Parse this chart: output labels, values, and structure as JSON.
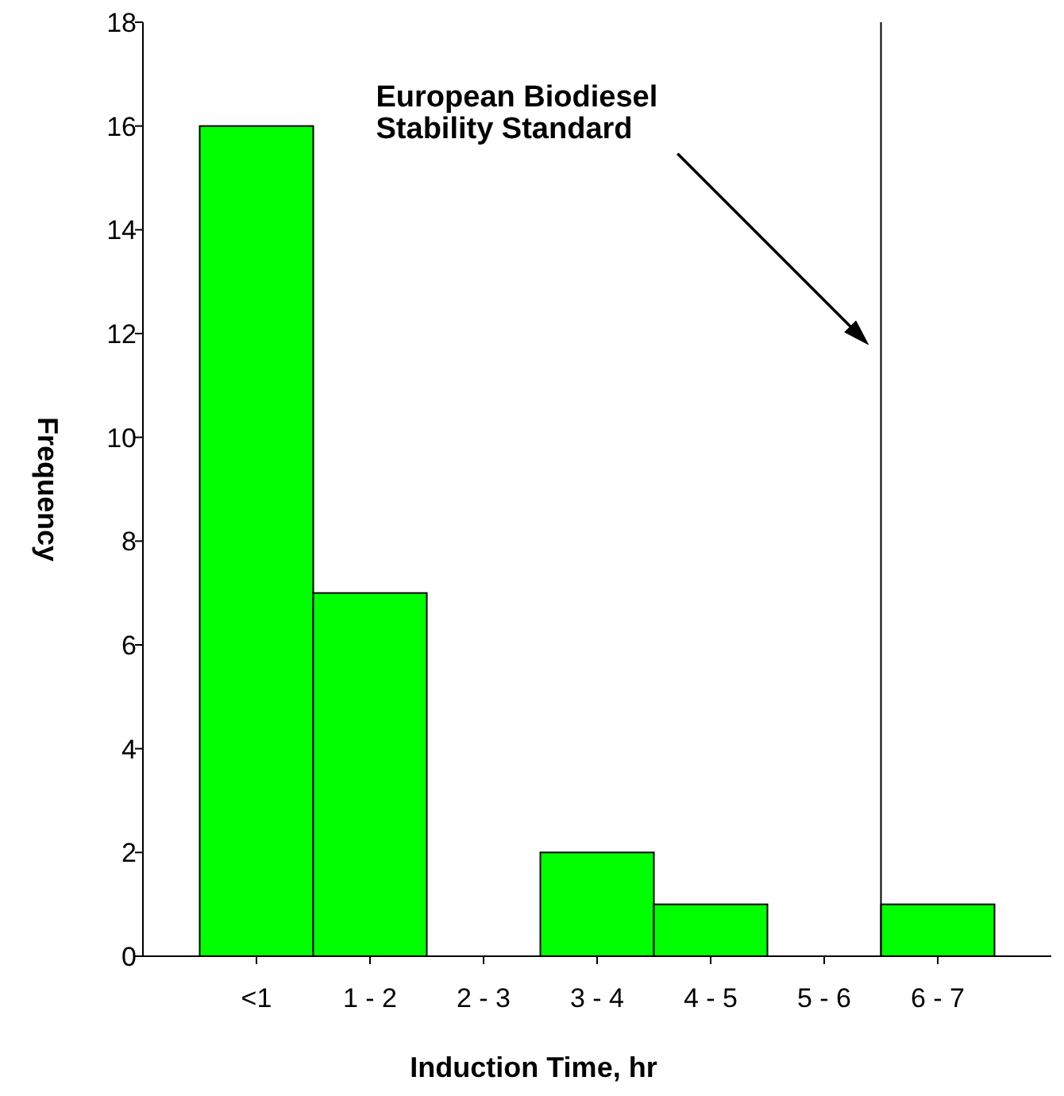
{
  "chart_data": {
    "type": "bar",
    "xlabel": "Induction Time, hr",
    "ylabel": "Frequency",
    "categories": [
      "<1",
      "1 - 2",
      "2 - 3",
      "3 - 4",
      "4 - 5",
      "5 - 6",
      "6 - 7"
    ],
    "values": [
      16,
      7,
      0,
      2,
      1,
      0,
      1
    ],
    "color": "#00ff00",
    "ylim": [
      0,
      18
    ],
    "yticks": [
      0,
      2,
      4,
      6,
      8,
      10,
      12,
      14,
      16,
      18
    ],
    "annotations": [
      "European Biodiesel\nStability Standard"
    ]
  }
}
